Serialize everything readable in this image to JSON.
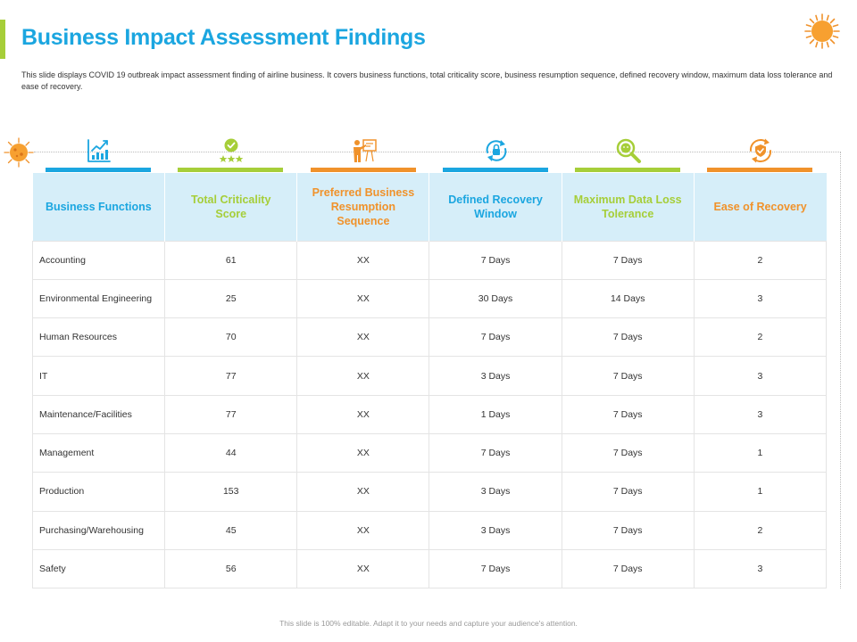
{
  "title": "Business Impact Assessment Findings",
  "description": "This slide displays COVID 19 outbreak  impact assessment finding of airline business. It covers business functions, total criticality score, business resumption sequence, defined recovery window, maximum data loss tolerance and ease of recovery.",
  "colors": {
    "blue": "#1ba6e0",
    "green": "#a6ce39",
    "orange": "#f0922b",
    "header_bg": "#d6eef9"
  },
  "columns": [
    {
      "label": "Business Functions",
      "icon": "bar-chart-growth-icon",
      "color": "#1ba6e0"
    },
    {
      "label": "Total Criticality Score",
      "icon": "checkmark-stars-icon",
      "color": "#a6ce39"
    },
    {
      "label": "Preferred Business Resumption Sequence",
      "icon": "presenter-board-icon",
      "color": "#f0922b"
    },
    {
      "label": "Defined Recovery Window",
      "icon": "lock-refresh-icon",
      "color": "#1ba6e0"
    },
    {
      "label": "Maximum Data Loss Tolerance",
      "icon": "magnifier-icon",
      "color": "#a6ce39"
    },
    {
      "label": "Ease of Recovery",
      "icon": "shield-refresh-icon",
      "color": "#f0922b"
    }
  ],
  "rows": [
    [
      "Accounting",
      "61",
      "XX",
      "7 Days",
      "7 Days",
      "2"
    ],
    [
      "Environmental Engineering",
      "25",
      "XX",
      "30 Days",
      "14 Days",
      "3"
    ],
    [
      "Human Resources",
      "70",
      "XX",
      "7 Days",
      "7 Days",
      "2"
    ],
    [
      "IT",
      "77",
      "XX",
      "3 Days",
      "7 Days",
      "3"
    ],
    [
      "Maintenance/Facilities",
      "77",
      "XX",
      "1 Days",
      "7 Days",
      "3"
    ],
    [
      "Management",
      "44",
      "XX",
      "7 Days",
      "7 Days",
      "1"
    ],
    [
      "Production",
      "153",
      "XX",
      "3 Days",
      "7 Days",
      "1"
    ],
    [
      "Purchasing/Warehousing",
      "45",
      "XX",
      "3 Days",
      "7 Days",
      "2"
    ],
    [
      "Safety",
      "56",
      "XX",
      "7 Days",
      "7 Days",
      "3"
    ]
  ],
  "footer": "This slide is 100% editable. Adapt it to your needs and capture your audience's attention."
}
